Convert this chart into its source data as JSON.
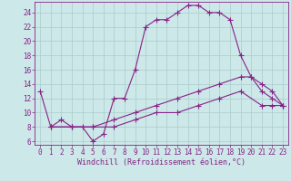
{
  "bg_color": "#cce8e8",
  "grid_color": "#aacccc",
  "line_color": "#882288",
  "xlabel": "Windchill (Refroidissement éolien,°C)",
  "ytick_values": [
    6,
    8,
    10,
    12,
    14,
    16,
    18,
    20,
    22,
    24
  ],
  "xtick_values": [
    0,
    1,
    2,
    3,
    4,
    5,
    6,
    7,
    8,
    9,
    10,
    11,
    12,
    13,
    14,
    15,
    16,
    17,
    18,
    19,
    20,
    21,
    22,
    23
  ],
  "xlim": [
    -0.5,
    23.5
  ],
  "ylim": [
    5.5,
    25.5
  ],
  "series1_x": [
    0,
    1,
    2,
    3,
    4,
    5,
    6,
    7,
    8,
    9,
    10,
    11,
    12,
    13,
    14,
    15,
    16,
    17,
    18,
    19,
    20,
    21,
    22,
    23
  ],
  "series1_y": [
    13,
    8,
    9,
    8,
    8,
    6,
    7,
    12,
    12,
    16,
    22,
    23,
    23,
    24,
    25,
    25,
    24,
    24,
    23,
    18,
    15,
    14,
    13,
    11
  ],
  "series1_markers_x": [
    0,
    1,
    3,
    5,
    6,
    7,
    9,
    11,
    12,
    13,
    14,
    15,
    16,
    18,
    19,
    20,
    21
  ],
  "series1_markers_y": [
    13,
    8,
    8,
    6,
    7,
    12,
    16,
    23,
    23,
    24,
    25,
    25,
    24,
    23,
    18,
    15,
    14
  ],
  "series2_x": [
    1,
    3,
    5,
    7,
    9,
    11,
    13,
    15,
    17,
    19,
    20,
    21,
    22,
    23
  ],
  "series2_y": [
    8,
    8,
    8,
    9,
    10,
    11,
    12,
    13,
    14,
    15,
    15,
    13,
    12,
    11
  ],
  "series3_x": [
    1,
    3,
    5,
    7,
    9,
    11,
    13,
    15,
    17,
    19,
    21,
    22,
    23
  ],
  "series3_y": [
    8,
    8,
    8,
    8,
    9,
    10,
    10,
    11,
    12,
    13,
    11,
    11,
    11
  ],
  "marker": "+",
  "marker_size": 4,
  "line_width": 0.8,
  "font_size_ticks": 5.5,
  "font_size_label": 6.0
}
